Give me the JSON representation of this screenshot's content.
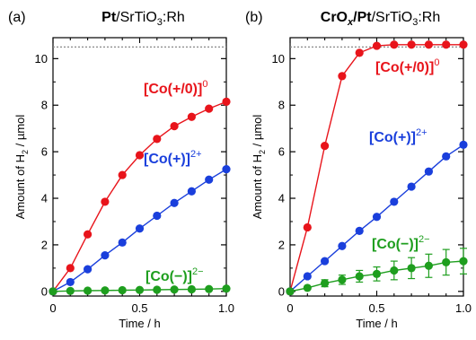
{
  "chart_data": [
    {
      "type": "line",
      "panel": "(a)",
      "title": {
        "bold": "Pt",
        "rest": "/SrTiO",
        "sub": "3",
        "tail": ":Rh"
      },
      "xlabel": "Time / h",
      "ylabel": {
        "pre": "Amount of H",
        "sub": "2",
        "post": " / µmol"
      },
      "xlim": [
        0,
        1.0
      ],
      "ylim": [
        -0.2,
        10.9
      ],
      "xticks": [
        "0",
        "0.5",
        "1.0"
      ],
      "yticks": [
        "0",
        "2",
        "4",
        "6",
        "8",
        "10"
      ],
      "reference_line_y": 10.5,
      "series": [
        {
          "name": "[Co(+/0)]",
          "sup": "0",
          "color": "#e8141b",
          "x": [
            0,
            0.1,
            0.2,
            0.3,
            0.4,
            0.5,
            0.6,
            0.7,
            0.8,
            0.9,
            1.0
          ],
          "y": [
            0,
            1.0,
            2.45,
            3.85,
            5.0,
            5.85,
            6.55,
            7.1,
            7.5,
            7.85,
            8.15
          ]
        },
        {
          "name": "[Co(+)]",
          "sup": "2+",
          "color": "#1a3fdc",
          "x": [
            0,
            0.1,
            0.2,
            0.3,
            0.4,
            0.5,
            0.6,
            0.7,
            0.8,
            0.9,
            1.0
          ],
          "y": [
            0,
            0.4,
            0.95,
            1.55,
            2.1,
            2.7,
            3.25,
            3.8,
            4.3,
            4.8,
            5.25
          ]
        },
        {
          "name": "[Co(−)]",
          "sup": "2−",
          "color": "#1e9e1e",
          "x": [
            0,
            0.1,
            0.2,
            0.3,
            0.4,
            0.5,
            0.6,
            0.7,
            0.8,
            0.9,
            1.0
          ],
          "y": [
            0,
            0.02,
            0.03,
            0.04,
            0.05,
            0.06,
            0.07,
            0.08,
            0.09,
            0.1,
            0.12
          ]
        }
      ]
    },
    {
      "type": "line",
      "panel": "(b)",
      "title": {
        "bold": "CrO",
        "bold_sub": "x",
        "bold2": "/Pt",
        "rest": "/SrTiO",
        "sub": "3",
        "tail": ":Rh"
      },
      "xlabel": "Time / h",
      "ylabel": {
        "pre": "Amount of H",
        "sub": "2",
        "post": " / µmol"
      },
      "xlim": [
        0,
        1.0
      ],
      "ylim": [
        -0.2,
        10.9
      ],
      "xticks": [
        "0",
        "0.5",
        "1.0"
      ],
      "yticks": [
        "0",
        "2",
        "4",
        "6",
        "8",
        "10"
      ],
      "reference_line_y": 10.5,
      "series": [
        {
          "name": "[Co(+/0)]",
          "sup": "0",
          "color": "#e8141b",
          "x": [
            0,
            0.1,
            0.2,
            0.3,
            0.4,
            0.5,
            0.6,
            0.7,
            0.8,
            0.9,
            1.0
          ],
          "y": [
            0,
            2.75,
            6.25,
            9.25,
            10.25,
            10.55,
            10.6,
            10.6,
            10.6,
            10.6,
            10.6
          ]
        },
        {
          "name": "[Co(+)]",
          "sup": "2+",
          "color": "#1a3fdc",
          "x": [
            0,
            0.1,
            0.2,
            0.3,
            0.4,
            0.5,
            0.6,
            0.7,
            0.8,
            0.9,
            1.0
          ],
          "y": [
            0,
            0.65,
            1.3,
            1.95,
            2.6,
            3.2,
            3.85,
            4.5,
            5.15,
            5.8,
            6.3
          ]
        },
        {
          "name": "[Co(−)]",
          "sup": "2−",
          "color": "#1e9e1e",
          "x": [
            0,
            0.1,
            0.2,
            0.3,
            0.4,
            0.5,
            0.6,
            0.7,
            0.8,
            0.9,
            1.0
          ],
          "y": [
            0,
            0.15,
            0.35,
            0.5,
            0.65,
            0.75,
            0.9,
            1.0,
            1.1,
            1.25,
            1.3
          ],
          "err": [
            0,
            0.05,
            0.15,
            0.2,
            0.25,
            0.3,
            0.4,
            0.45,
            0.5,
            0.55,
            0.55
          ]
        }
      ]
    }
  ]
}
